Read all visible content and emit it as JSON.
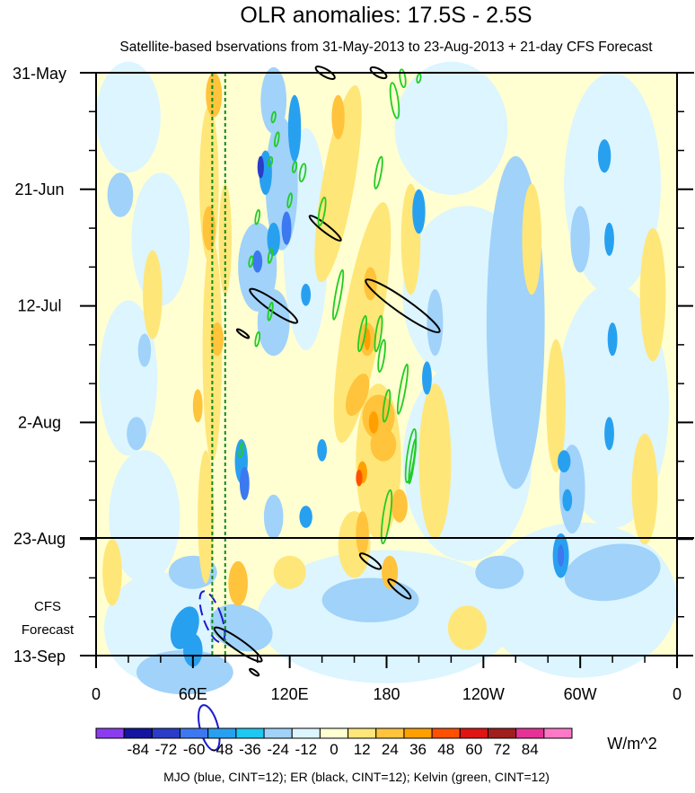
{
  "chart_data": {
    "type": "heatmap",
    "title": "OLR anomalies: 17.5S - 2.5S",
    "subtitle": "Satellite-based bservations from 31-May-2013 to 23-Aug-2013 + 21-day CFS Forecast",
    "x_ticks": [
      "0",
      "60E",
      "120E",
      "180",
      "120W",
      "60W",
      "0"
    ],
    "x_tick_lons": [
      0,
      60,
      120,
      180,
      240,
      300,
      360
    ],
    "y_ticks": [
      "31-May",
      "21-Jun",
      "12-Jul",
      "2-Aug",
      "23-Aug",
      "13-Sep"
    ],
    "y_tick_days": [
      0,
      21,
      42,
      63,
      84,
      105
    ],
    "xlim": [
      0,
      360
    ],
    "ylim_days": [
      0,
      105
    ],
    "observation_end": "23-Aug",
    "forecast_label_line1": "CFS",
    "forecast_label_line2": "Forecast",
    "colorbar": {
      "labels": [
        "-84",
        "-72",
        "-60",
        "-48",
        "-36",
        "-24",
        "-12",
        "0",
        "12",
        "24",
        "36",
        "48",
        "60",
        "72",
        "84"
      ],
      "colors": [
        "#8c3cf0",
        "#1414a0",
        "#2a3cc8",
        "#3c78f0",
        "#28a0f0",
        "#1ec8f0",
        "#a0d2fa",
        "#dcf5ff",
        "#ffffd2",
        "#ffe678",
        "#ffc33c",
        "#ffa000",
        "#ff5000",
        "#e11414",
        "#a01e1e",
        "#e63296",
        "#ff78c8"
      ],
      "units": "W/m^2"
    },
    "dashed_reference_lons": [
      72,
      80
    ],
    "contours": {
      "mjo_color": "#1a1ad0",
      "er_color": "#000000",
      "kelvin_color": "#22cc22"
    },
    "footnote": "MJO (blue, CINT=12); ER (black, CINT=12); Kelvin (green, CINT=12)"
  }
}
